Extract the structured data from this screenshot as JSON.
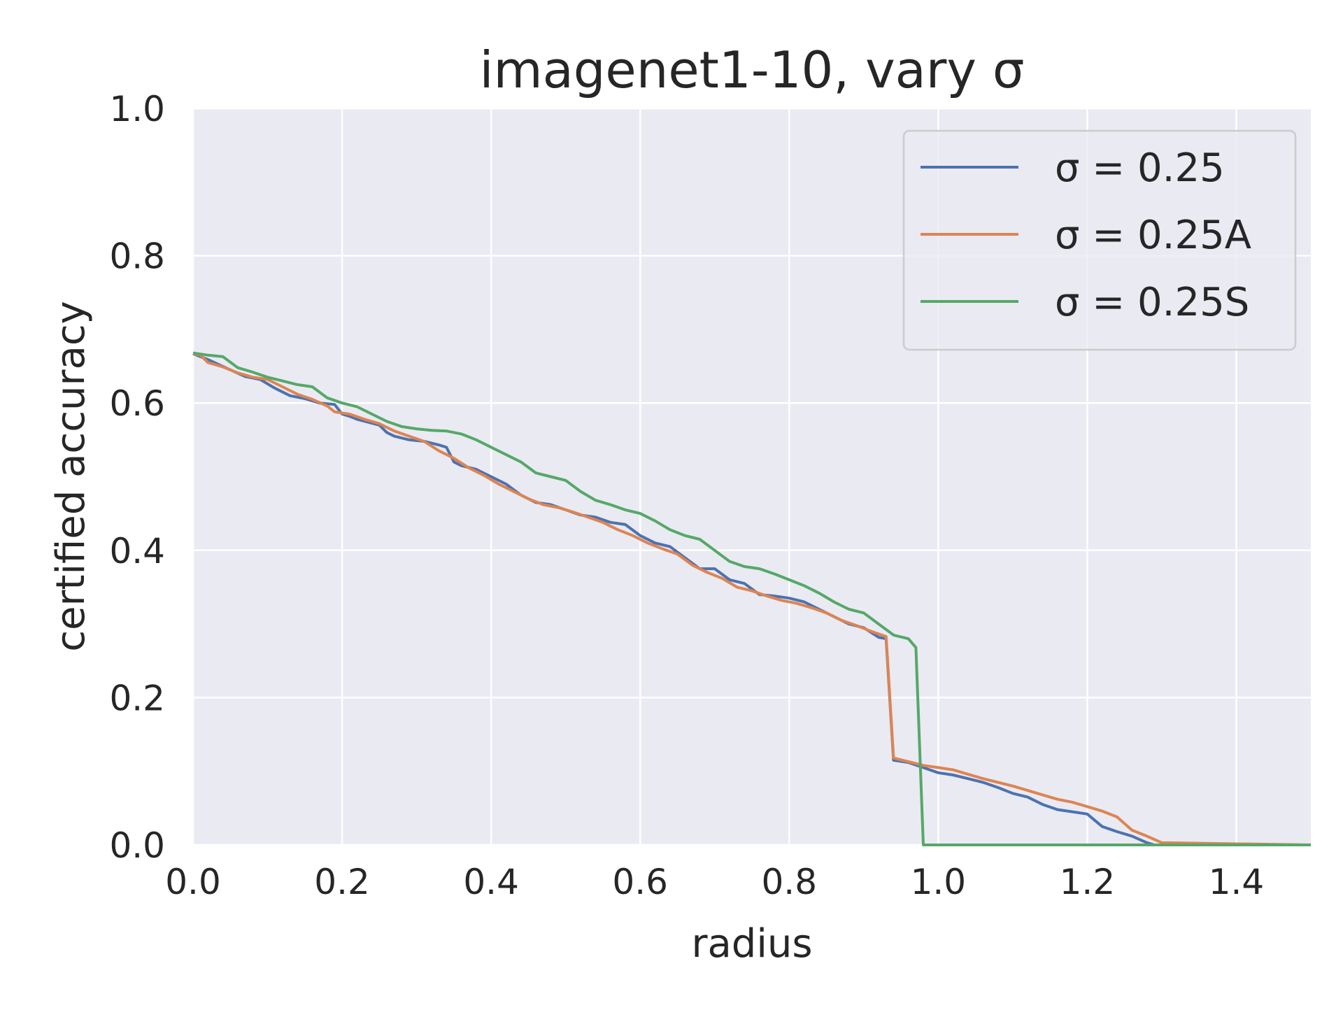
{
  "chart_data": {
    "type": "line",
    "title": "imagenet1-10, vary σ",
    "xlabel": "radius",
    "ylabel": "certified accuracy",
    "xlim": [
      0.0,
      1.5
    ],
    "ylim": [
      0.0,
      1.0
    ],
    "xticks": [
      "0.0",
      "0.2",
      "0.4",
      "0.6",
      "0.8",
      "1.0",
      "1.2",
      "1.4"
    ],
    "yticks": [
      "0.0",
      "0.2",
      "0.4",
      "0.6",
      "0.8",
      "1.0"
    ],
    "grid": true,
    "background": "#eaeaf2",
    "legend_position": "top-right",
    "series": [
      {
        "name": "σ = 0.25",
        "color": "#4c72b0",
        "x": [
          0.0,
          0.02,
          0.05,
          0.07,
          0.09,
          0.11,
          0.13,
          0.15,
          0.17,
          0.19,
          0.2,
          0.21,
          0.22,
          0.25,
          0.26,
          0.27,
          0.29,
          0.31,
          0.33,
          0.34,
          0.35,
          0.36,
          0.38,
          0.4,
          0.42,
          0.44,
          0.46,
          0.48,
          0.5,
          0.52,
          0.54,
          0.56,
          0.58,
          0.6,
          0.62,
          0.64,
          0.66,
          0.68,
          0.7,
          0.72,
          0.74,
          0.76,
          0.78,
          0.8,
          0.82,
          0.84,
          0.86,
          0.88,
          0.9,
          0.92,
          0.93,
          0.94,
          0.96,
          0.98,
          1.0,
          1.02,
          1.04,
          1.06,
          1.08,
          1.1,
          1.12,
          1.14,
          1.16,
          1.18,
          1.2,
          1.22,
          1.24,
          1.26,
          1.28,
          1.29,
          1.5
        ],
        "y": [
          0.667,
          0.659,
          0.645,
          0.636,
          0.632,
          0.62,
          0.61,
          0.606,
          0.6,
          0.598,
          0.585,
          0.582,
          0.578,
          0.57,
          0.56,
          0.555,
          0.55,
          0.548,
          0.543,
          0.54,
          0.52,
          0.515,
          0.51,
          0.5,
          0.49,
          0.475,
          0.465,
          0.462,
          0.455,
          0.448,
          0.445,
          0.438,
          0.435,
          0.42,
          0.41,
          0.405,
          0.39,
          0.375,
          0.375,
          0.36,
          0.355,
          0.34,
          0.338,
          0.335,
          0.33,
          0.32,
          0.31,
          0.3,
          0.295,
          0.282,
          0.28,
          0.115,
          0.112,
          0.105,
          0.098,
          0.095,
          0.09,
          0.085,
          0.078,
          0.07,
          0.065,
          0.055,
          0.048,
          0.045,
          0.042,
          0.025,
          0.018,
          0.012,
          0.003,
          0.0,
          0.0
        ]
      },
      {
        "name": "σ = 0.25A",
        "color": "#dd8452",
        "x": [
          0.0,
          0.01,
          0.02,
          0.04,
          0.06,
          0.08,
          0.1,
          0.12,
          0.14,
          0.16,
          0.18,
          0.19,
          0.21,
          0.23,
          0.25,
          0.27,
          0.29,
          0.31,
          0.33,
          0.35,
          0.37,
          0.39,
          0.41,
          0.43,
          0.45,
          0.47,
          0.49,
          0.51,
          0.53,
          0.55,
          0.57,
          0.59,
          0.61,
          0.63,
          0.65,
          0.67,
          0.69,
          0.71,
          0.73,
          0.75,
          0.77,
          0.79,
          0.81,
          0.83,
          0.85,
          0.87,
          0.89,
          0.91,
          0.93,
          0.94,
          0.96,
          0.98,
          1.0,
          1.02,
          1.04,
          1.06,
          1.08,
          1.1,
          1.12,
          1.14,
          1.16,
          1.18,
          1.2,
          1.22,
          1.24,
          1.26,
          1.28,
          1.3,
          1.5
        ],
        "y": [
          0.667,
          0.665,
          0.655,
          0.649,
          0.641,
          0.635,
          0.632,
          0.622,
          0.612,
          0.605,
          0.596,
          0.588,
          0.585,
          0.578,
          0.572,
          0.562,
          0.555,
          0.548,
          0.535,
          0.525,
          0.512,
          0.502,
          0.49,
          0.48,
          0.47,
          0.462,
          0.458,
          0.452,
          0.445,
          0.438,
          0.428,
          0.42,
          0.41,
          0.402,
          0.395,
          0.38,
          0.37,
          0.362,
          0.35,
          0.345,
          0.338,
          0.332,
          0.328,
          0.322,
          0.315,
          0.305,
          0.298,
          0.29,
          0.283,
          0.118,
          0.113,
          0.108,
          0.105,
          0.102,
          0.096,
          0.09,
          0.085,
          0.08,
          0.074,
          0.068,
          0.062,
          0.058,
          0.052,
          0.046,
          0.038,
          0.02,
          0.012,
          0.003,
          0.0
        ]
      },
      {
        "name": "σ = 0.25S",
        "color": "#55a868",
        "x": [
          0.0,
          0.02,
          0.04,
          0.06,
          0.08,
          0.1,
          0.12,
          0.14,
          0.16,
          0.18,
          0.2,
          0.22,
          0.24,
          0.26,
          0.28,
          0.3,
          0.32,
          0.34,
          0.36,
          0.38,
          0.4,
          0.42,
          0.44,
          0.46,
          0.48,
          0.5,
          0.52,
          0.54,
          0.56,
          0.58,
          0.6,
          0.62,
          0.64,
          0.66,
          0.68,
          0.7,
          0.72,
          0.74,
          0.76,
          0.78,
          0.8,
          0.82,
          0.84,
          0.86,
          0.88,
          0.9,
          0.92,
          0.94,
          0.96,
          0.97,
          0.98,
          1.0,
          1.5
        ],
        "y": [
          0.668,
          0.665,
          0.663,
          0.648,
          0.642,
          0.635,
          0.63,
          0.625,
          0.622,
          0.607,
          0.6,
          0.595,
          0.585,
          0.575,
          0.568,
          0.565,
          0.563,
          0.562,
          0.558,
          0.55,
          0.54,
          0.53,
          0.52,
          0.505,
          0.5,
          0.495,
          0.48,
          0.468,
          0.462,
          0.455,
          0.45,
          0.44,
          0.428,
          0.42,
          0.415,
          0.4,
          0.385,
          0.378,
          0.375,
          0.368,
          0.36,
          0.352,
          0.342,
          0.33,
          0.32,
          0.315,
          0.3,
          0.285,
          0.28,
          0.268,
          0.0,
          0.0,
          0.0
        ]
      }
    ]
  }
}
